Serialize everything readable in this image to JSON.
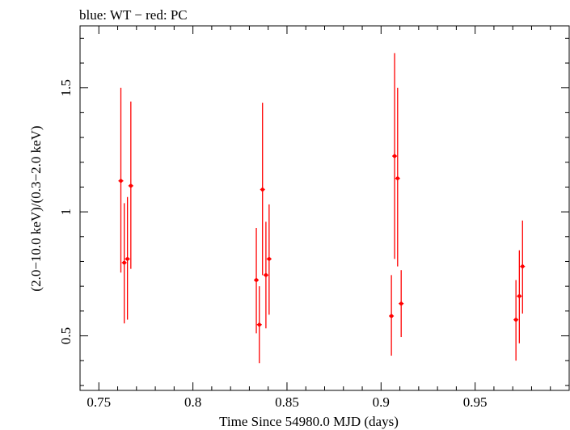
{
  "legend_text": "blue: WT − red: PC",
  "chart_data": {
    "type": "scatter",
    "title": "",
    "xlabel": "Time Since 54980.0 MJD (days)",
    "ylabel": "(2.0−10.0 keV)/(0.3−2.0 keV)",
    "xlim": [
      0.74,
      1.0
    ],
    "ylim": [
      0.28,
      1.75
    ],
    "xticks": [
      {
        "value": 0.75,
        "label": "0.75"
      },
      {
        "value": 0.8,
        "label": "0.8"
      },
      {
        "value": 0.85,
        "label": "0.85"
      },
      {
        "value": 0.9,
        "label": "0.9"
      },
      {
        "value": 0.95,
        "label": "0.95"
      }
    ],
    "yticks": [
      {
        "value": 0.5,
        "label": "0.5"
      },
      {
        "value": 1.0,
        "label": "1"
      },
      {
        "value": 1.5,
        "label": "1.5"
      }
    ],
    "grid": false,
    "series": [
      {
        "name": "PC",
        "color": "#ff0000",
        "points": [
          {
            "x": 0.7617,
            "y": 1.125,
            "ylo": 0.755,
            "yhi": 1.5
          },
          {
            "x": 0.7635,
            "y": 0.795,
            "ylo": 0.55,
            "yhi": 1.035
          },
          {
            "x": 0.7652,
            "y": 0.81,
            "ylo": 0.565,
            "yhi": 1.06
          },
          {
            "x": 0.767,
            "y": 1.105,
            "ylo": 0.77,
            "yhi": 1.445
          },
          {
            "x": 0.8337,
            "y": 0.725,
            "ylo": 0.51,
            "yhi": 0.935
          },
          {
            "x": 0.8353,
            "y": 0.545,
            "ylo": 0.39,
            "yhi": 0.7
          },
          {
            "x": 0.837,
            "y": 1.09,
            "ylo": 0.745,
            "yhi": 1.44
          },
          {
            "x": 0.8388,
            "y": 0.745,
            "ylo": 0.53,
            "yhi": 0.96
          },
          {
            "x": 0.8405,
            "y": 0.81,
            "ylo": 0.585,
            "yhi": 1.03
          },
          {
            "x": 0.9055,
            "y": 0.58,
            "ylo": 0.42,
            "yhi": 0.745
          },
          {
            "x": 0.9072,
            "y": 1.225,
            "ylo": 0.81,
            "yhi": 1.64
          },
          {
            "x": 0.9088,
            "y": 1.135,
            "ylo": 0.78,
            "yhi": 1.5
          },
          {
            "x": 0.9107,
            "y": 0.63,
            "ylo": 0.495,
            "yhi": 0.765
          },
          {
            "x": 0.9717,
            "y": 0.565,
            "ylo": 0.4,
            "yhi": 0.725
          },
          {
            "x": 0.9735,
            "y": 0.66,
            "ylo": 0.47,
            "yhi": 0.845
          },
          {
            "x": 0.9752,
            "y": 0.78,
            "ylo": 0.59,
            "yhi": 0.965
          }
        ]
      }
    ]
  }
}
